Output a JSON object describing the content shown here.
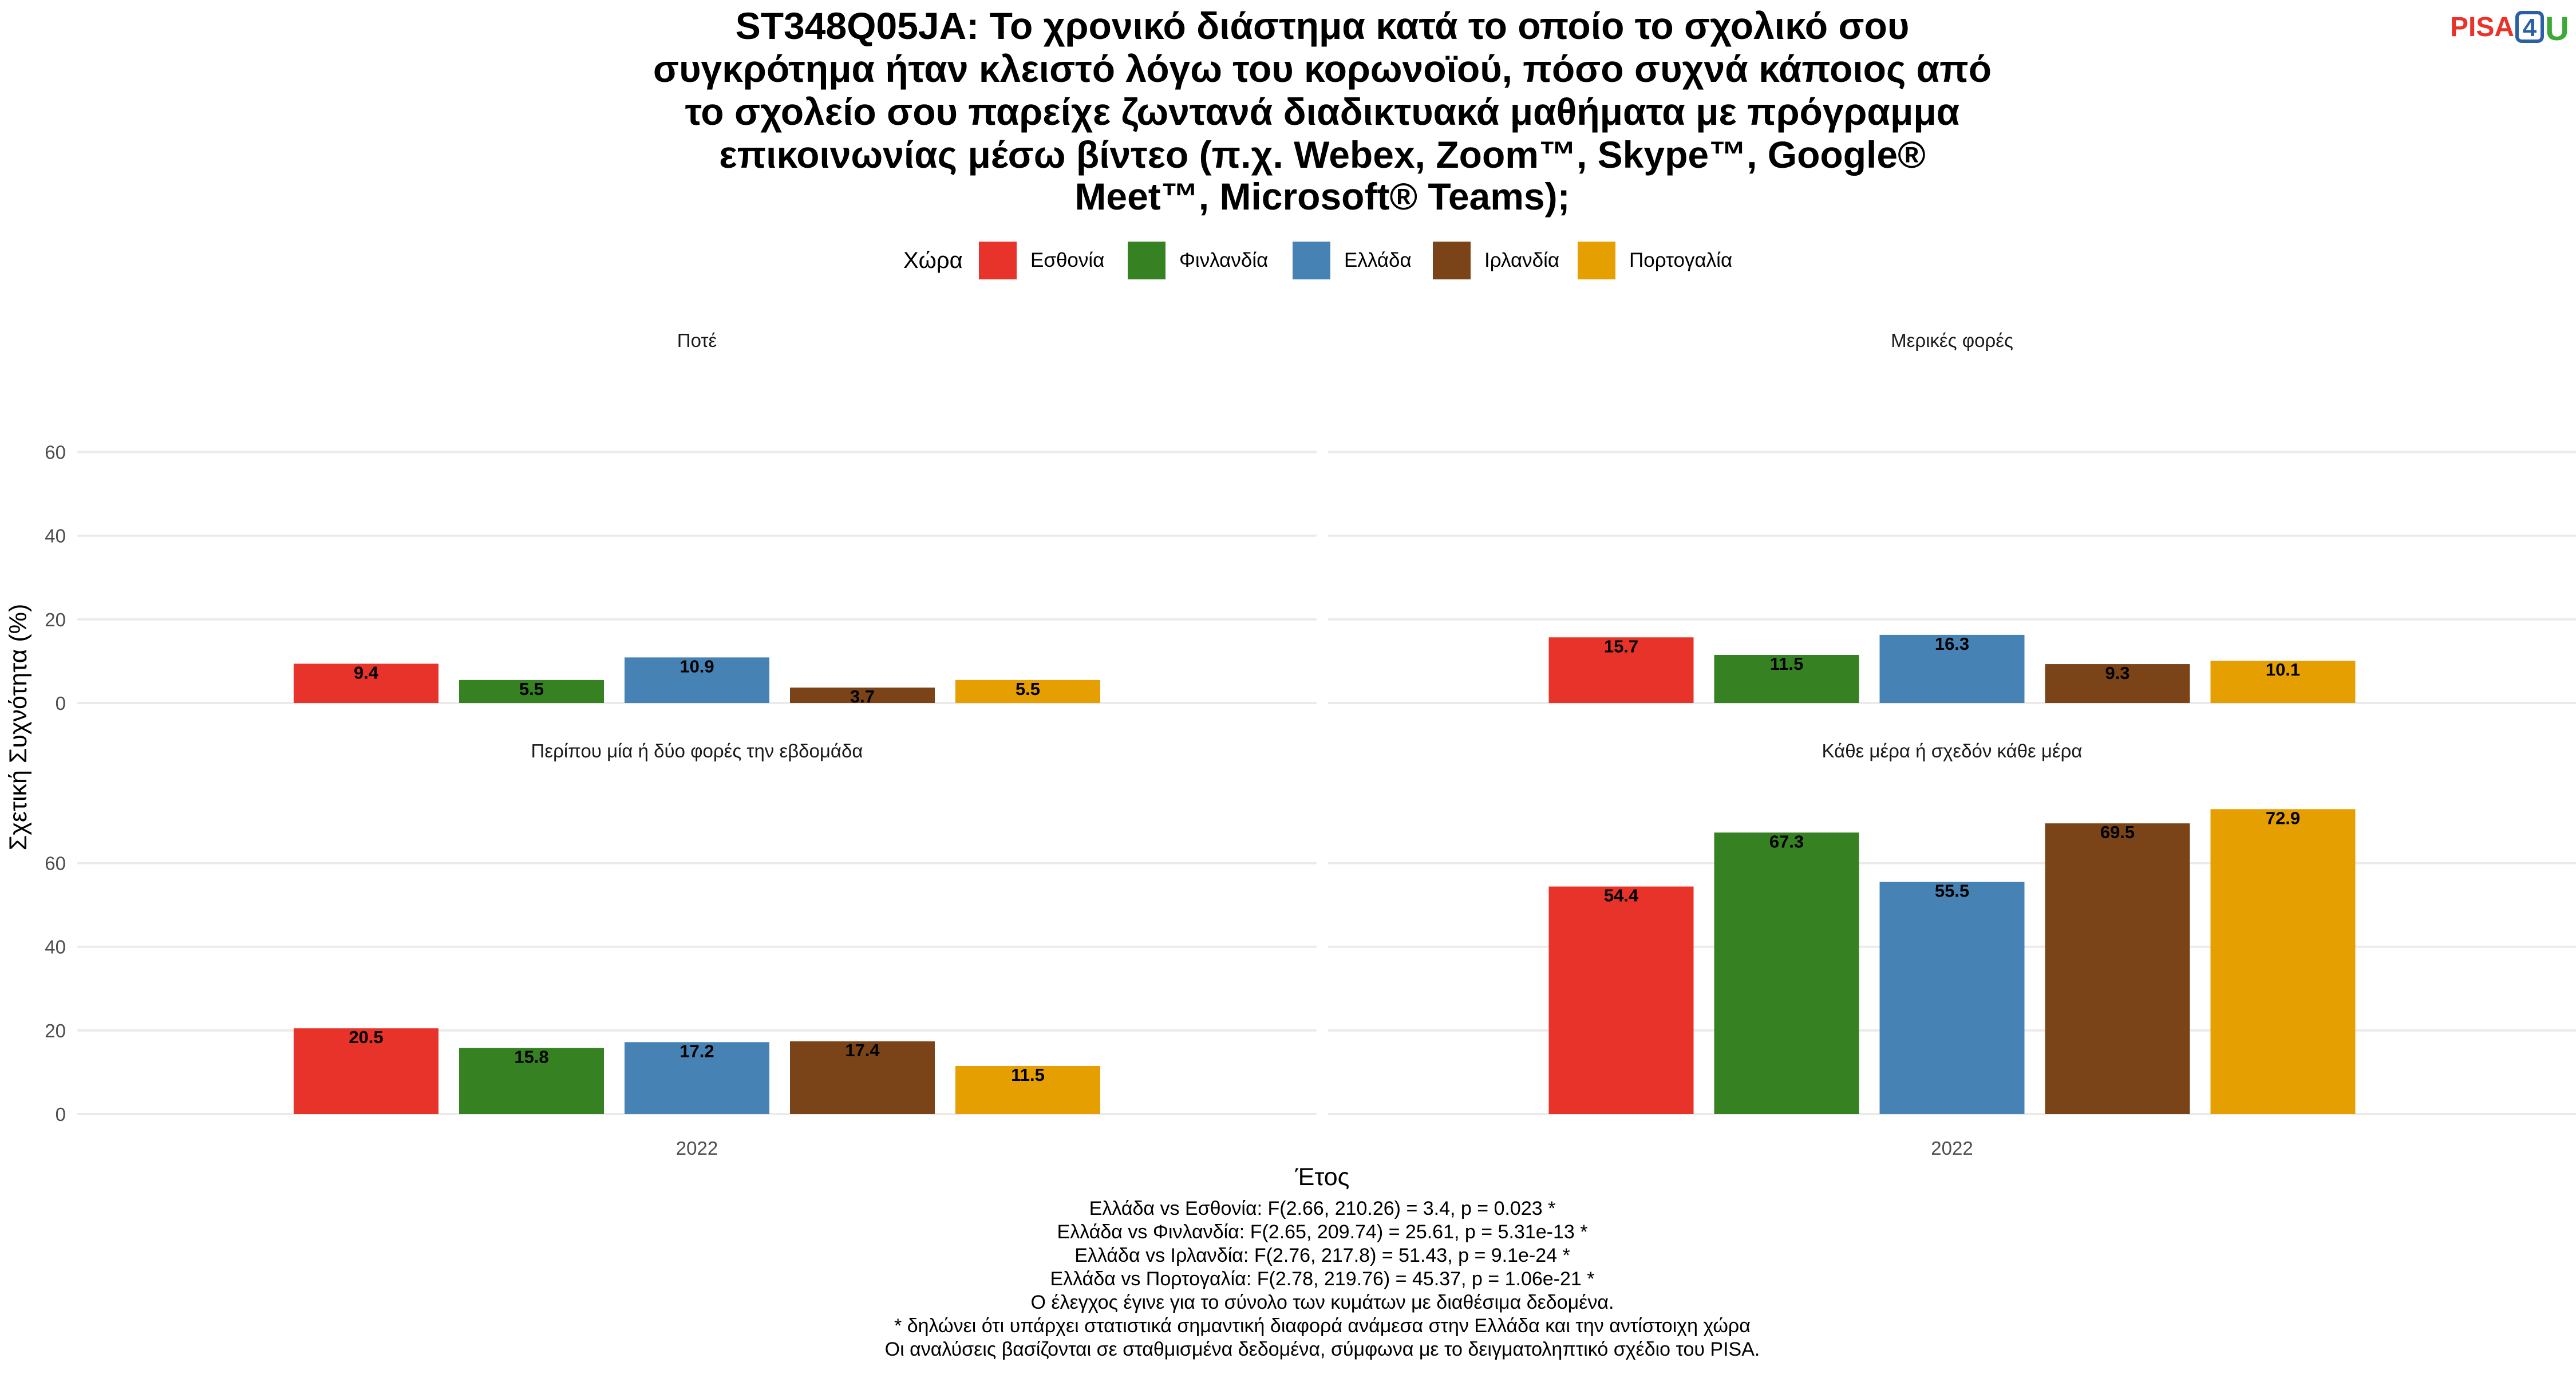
{
  "title_lines": [
    "ST348Q05JA: Το χρονικό διάστημα κατά το οποίο το σχολικό σου",
    "συγκρότημα ήταν κλειστό λόγω του κορωνοϊού, πόσο συχνά κάποιος από",
    "το σχολείο σου παρείχε ζωντανά διαδικτυακά μαθήματα με πρόγραμμα",
    "επικοινωνίας μέσω βίντεο (π.χ. Webex, Zoom™, Skype™, Google®",
    "Meet™, Microsoft® Teams);"
  ],
  "logo": {
    "pisa": "PISA",
    "four": "4",
    "u": "U"
  },
  "legend": {
    "title": "Χώρα"
  },
  "colors": {
    "Εσθονία": "#e8332a",
    "Φινλανδία": "#368122",
    "Ελλάδα": "#4682b4",
    "Ιρλανδία": "#7b4418",
    "Πορτογαλία": "#e69f00",
    "grid": "#ebebeb"
  },
  "chart_data": {
    "type": "bar",
    "x_category": "2022",
    "xlabel": "Έτος",
    "ylabel": "Σχετική Συχνότητα (%)",
    "ylim": [
      0,
      75
    ],
    "y_ticks": [
      0,
      20,
      40,
      60
    ],
    "grid": true,
    "legend_position": "top",
    "series_names": [
      "Εσθονία",
      "Φινλανδία",
      "Ελλάδα",
      "Ιρλανδία",
      "Πορτογαλία"
    ],
    "facets": [
      {
        "title": "Ποτέ",
        "values": [
          9.4,
          5.5,
          10.9,
          3.7,
          5.5
        ],
        "labels": [
          "9.4",
          "5.5",
          "10.9",
          "3.7",
          "5.5"
        ]
      },
      {
        "title": "Μερικές φορές",
        "values": [
          15.7,
          11.5,
          16.3,
          9.3,
          10.1
        ],
        "labels": [
          "15.7",
          "11.5",
          "16.3",
          "9.3",
          "10.1"
        ]
      },
      {
        "title": "Περίπου μία ή δύο φορές την εβδομάδα",
        "values": [
          20.5,
          15.8,
          17.2,
          17.4,
          11.5
        ],
        "labels": [
          "20.5",
          "15.8",
          "17.2",
          "17.4",
          "11.5"
        ]
      },
      {
        "title": "Κάθε μέρα ή σχεδόν κάθε μέρα",
        "values": [
          54.4,
          67.3,
          55.5,
          69.5,
          72.9
        ],
        "labels": [
          "54.4",
          "67.3",
          "55.5",
          "69.5",
          "72.9"
        ]
      }
    ]
  },
  "footnotes": [
    "Ελλάδα vs Εσθονία: F(2.66, 210.26) = 3.4, p = 0.023 *",
    "Ελλάδα vs Φινλανδία: F(2.65, 209.74) = 25.61, p = 5.31e-13 *",
    "Ελλάδα vs Ιρλανδία: F(2.76, 217.8) = 51.43, p = 9.1e-24 *",
    "Ελλάδα vs Πορτογαλία: F(2.78, 219.76) = 45.37, p = 1.06e-21 *",
    "Ο έλεγχος έγινε για το σύνολο των κυμάτων με διαθέσιμα δεδομένα.",
    "* δηλώνει ότι υπάρχει στατιστικά σημαντική διαφορά ανάμεσα στην Ελλάδα και την αντίστοιχη χώρα",
    "Οι αναλύσεις βασίζονται σε σταθμισμένα δεδομένα, σύμφωνα με το δειγματοληπτικό σχέδιο του PISA."
  ]
}
